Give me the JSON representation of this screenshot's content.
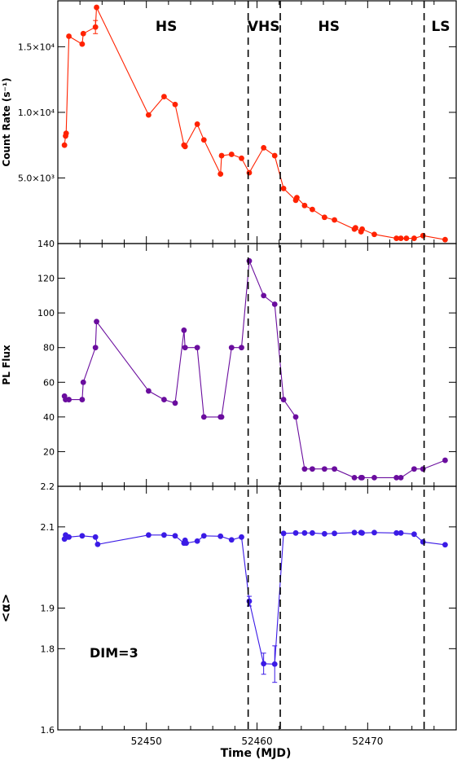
{
  "figure": {
    "x_axis_label": "Time (MJD)",
    "x_ticks": [
      52450,
      52460,
      52470
    ],
    "x_range": [
      52442,
      52478
    ],
    "state_boundaries": [
      52459.2,
      52462.1,
      52475.1
    ],
    "state_labels": [
      {
        "text": "HS",
        "x": 52451.8
      },
      {
        "text": "VHS",
        "x": 52460.6
      },
      {
        "text": "HS",
        "x": 52466.5
      },
      {
        "text": "LS",
        "x": 52476.6
      }
    ],
    "annotation": "DIM=3"
  },
  "chart_data": [
    {
      "type": "line",
      "panel": "count-rate",
      "ylabel": "Count Rate (s⁻¹)",
      "ylim": [
        0,
        18500
      ],
      "yticks": [
        {
          "value": 5000,
          "label": "5.0×10³"
        },
        {
          "value": 10000,
          "label": "1.0×10⁴"
        },
        {
          "value": 15000,
          "label": "1.5×10⁴"
        }
      ],
      "color": "#ff2200",
      "x": [
        52442.6,
        52442.7,
        52442.75,
        52443.0,
        52444.2,
        52444.3,
        52445.4,
        52445.5,
        52450.2,
        52451.6,
        52452.6,
        52453.4,
        52453.5,
        52454.6,
        52455.2,
        52456.7,
        52456.8,
        52457.7,
        52458.6,
        52459.3,
        52460.6,
        52461.6,
        52462.4,
        52463.5,
        52463.6,
        52464.3,
        52465.0,
        52466.1,
        52467.0,
        52468.8,
        52468.9,
        52469.4,
        52469.5,
        52470.6,
        52472.6,
        52473.0,
        52473.5,
        52474.2,
        52475.0,
        52477.0
      ],
      "y": [
        7500,
        8200,
        8400,
        15800,
        15200,
        16000,
        16500,
        18000,
        9800,
        11200,
        10600,
        7500,
        7400,
        9100,
        7900,
        5300,
        6700,
        6800,
        6500,
        5400,
        7300,
        6700,
        4200,
        3300,
        3500,
        2900,
        2600,
        2000,
        1800,
        1100,
        1200,
        900,
        1100,
        700,
        400,
        400,
        400,
        400,
        600,
        300
      ],
      "error_bars": [
        {
          "x": 52445.4,
          "y": 16500,
          "err": 500
        }
      ]
    },
    {
      "type": "line",
      "panel": "pl-flux",
      "ylabel": "PL Flux",
      "ylim": [
        0,
        140
      ],
      "yticks": [
        20,
        40,
        60,
        80,
        100,
        120,
        140
      ],
      "color": "#6a0d9e",
      "x": [
        52442.6,
        52442.7,
        52443.0,
        52444.2,
        52444.3,
        52445.4,
        52445.5,
        52450.2,
        52451.6,
        52452.6,
        52453.4,
        52453.5,
        52454.6,
        52455.2,
        52456.7,
        52456.8,
        52457.7,
        52458.6,
        52459.3,
        52460.6,
        52461.6,
        52462.4,
        52463.5,
        52464.3,
        52465.0,
        52466.1,
        52467.0,
        52468.8,
        52469.4,
        52469.5,
        52470.6,
        52472.6,
        52473.0,
        52474.2,
        52475.0,
        52477.0
      ],
      "y": [
        52,
        50,
        50,
        50,
        60,
        80,
        95,
        55,
        50,
        48,
        90,
        80,
        80,
        40,
        40,
        40,
        80,
        80,
        130,
        110,
        105,
        50,
        40,
        10,
        10,
        10,
        10,
        5,
        5,
        5,
        5,
        5,
        5,
        10,
        10,
        15
      ]
    },
    {
      "type": "line",
      "panel": "alpha",
      "ylabel": "<α>",
      "ylim": [
        1.6,
        2.2
      ],
      "yticks": [
        {
          "value": 1.6,
          "label": "1.6"
        },
        {
          "value": 1.8,
          "label": "1.8"
        },
        {
          "value": 1.9,
          "label": "1.9"
        },
        {
          "value": 2.1,
          "label": "2.1"
        },
        {
          "value": 2.2,
          "label": "2.2"
        }
      ],
      "color": "#3b1be6",
      "x": [
        52442.6,
        52442.7,
        52442.8,
        52443.0,
        52444.2,
        52445.4,
        52445.6,
        52450.2,
        52451.6,
        52452.6,
        52453.4,
        52453.5,
        52453.6,
        52454.6,
        52455.2,
        52456.7,
        52457.7,
        52458.6,
        52459.3,
        52460.6,
        52461.6,
        52462.4,
        52463.5,
        52464.3,
        52465.0,
        52466.1,
        52467.0,
        52468.8,
        52469.4,
        52469.5,
        52470.6,
        52472.6,
        52473.0,
        52474.2,
        52475.0,
        52477.0
      ],
      "y": [
        2.07,
        2.08,
        2.075,
        2.075,
        2.078,
        2.075,
        2.057,
        2.08,
        2.08,
        2.078,
        2.06,
        2.067,
        2.06,
        2.065,
        2.078,
        2.077,
        2.068,
        2.075,
        1.917,
        1.763,
        1.762,
        2.084,
        2.085,
        2.085,
        2.085,
        2.083,
        2.084,
        2.086,
        2.086,
        2.085,
        2.086,
        2.085,
        2.085,
        2.082,
        2.063,
        2.056
      ],
      "error_bars": [
        {
          "x": 52459.3,
          "y": 1.917,
          "err": 0.012
        },
        {
          "x": 52460.6,
          "y": 1.763,
          "err": 0.026
        },
        {
          "x": 52461.6,
          "y": 1.762,
          "err": 0.045
        }
      ]
    }
  ]
}
